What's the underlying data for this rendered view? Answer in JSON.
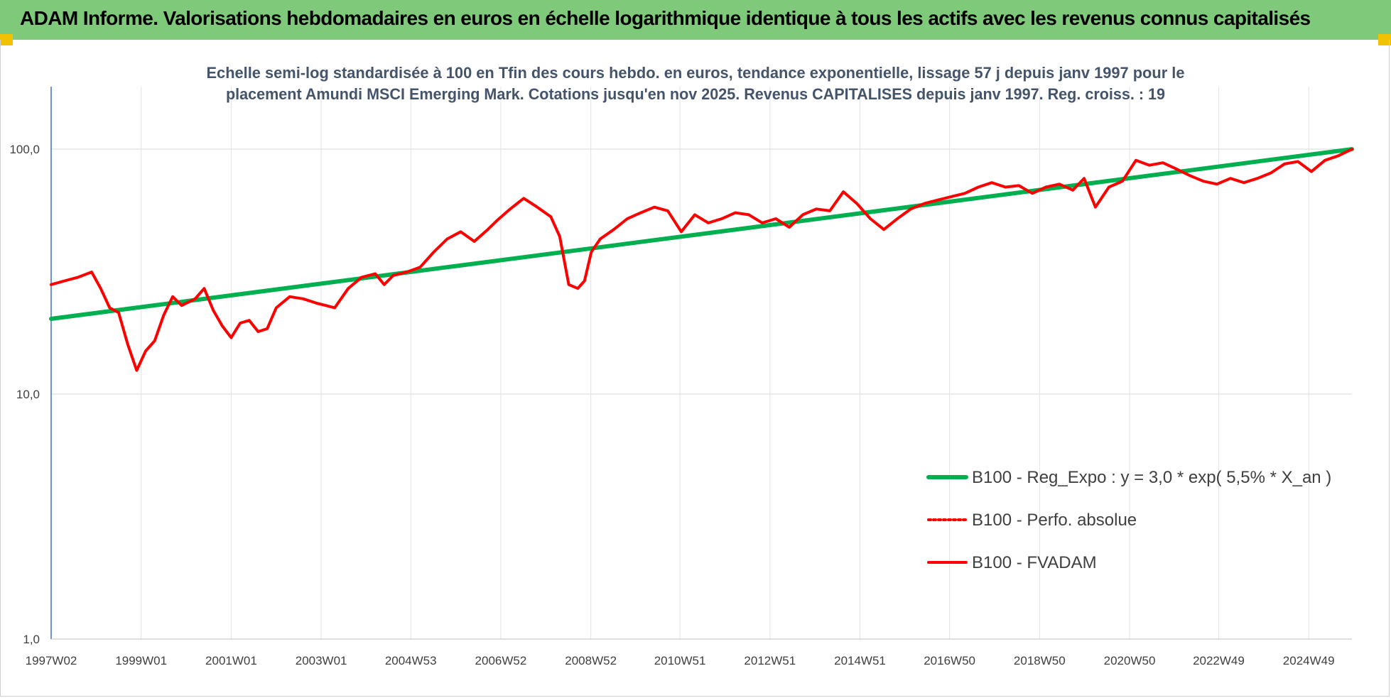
{
  "banner": {
    "title": "ADAM Informe. Valorisations hebdomadaires en euros en échelle logarithmique identique à tous les actifs avec les revenus connus capitalisés",
    "background": "#7fc97a",
    "corner_color": "#f2c200"
  },
  "chart_data": {
    "type": "line",
    "title_lines": [
      "Echelle semi-log standardisée à 100 en Tfin des cours hebdo. en euros, tendance exponentielle, lissage 57 j depuis janv 1997 pour le",
      "placement Amundi MSCI Emerging Mark. Cotations jusqu'en nov 2025. Revenus CAPITALISES depuis janv 1997. Reg. croiss. : 19"
    ],
    "y_scale": "log",
    "ylim": [
      1,
      180
    ],
    "y_ticks": [
      {
        "value": 1,
        "label": "1,0"
      },
      {
        "value": 10,
        "label": "10,0"
      },
      {
        "value": 100,
        "label": "100,0"
      }
    ],
    "xlim": [
      1997.0,
      2025.9
    ],
    "x_ticks": [
      {
        "value": 1997.0,
        "label": "1997W02"
      },
      {
        "value": 1999.0,
        "label": "1999W01"
      },
      {
        "value": 2001.0,
        "label": "2001W01"
      },
      {
        "value": 2003.0,
        "label": "2003W01"
      },
      {
        "value": 2004.99,
        "label": "2004W53"
      },
      {
        "value": 2006.99,
        "label": "2006W52"
      },
      {
        "value": 2008.99,
        "label": "2008W52"
      },
      {
        "value": 2010.97,
        "label": "2010W51"
      },
      {
        "value": 2012.97,
        "label": "2012W51"
      },
      {
        "value": 2014.97,
        "label": "2014W51"
      },
      {
        "value": 2016.96,
        "label": "2016W50"
      },
      {
        "value": 2018.96,
        "label": "2018W50"
      },
      {
        "value": 2020.96,
        "label": "2020W50"
      },
      {
        "value": 2022.94,
        "label": "2022W49"
      },
      {
        "value": 2024.94,
        "label": "2024W49"
      }
    ],
    "grid": {
      "vertical": true,
      "horizontal": true
    },
    "legend_position": "bottom-right",
    "series": [
      {
        "name": "B100 - Reg_Expo : y = 3,0 * exp( 5,5% *  X_an )",
        "color": "#00b050",
        "style": "solid",
        "x": [
          1997.0,
          2025.9
        ],
        "y": [
          20.3,
          100.0
        ]
      },
      {
        "name": "B100 - Perfo. absolue",
        "color": "#ff0000",
        "style": "dotted",
        "x": [],
        "y": []
      },
      {
        "name": "B100 - FVADAM",
        "color": "#ff0000",
        "style": "solid",
        "x": [
          1997.0,
          1997.3,
          1997.6,
          1997.9,
          1998.1,
          1998.3,
          1998.5,
          1998.7,
          1998.9,
          1999.1,
          1999.3,
          1999.5,
          1999.7,
          1999.9,
          2000.2,
          2000.4,
          2000.6,
          2000.8,
          2001.0,
          2001.2,
          2001.4,
          2001.6,
          2001.8,
          2002.0,
          2002.3,
          2002.6,
          2002.9,
          2003.1,
          2003.3,
          2003.6,
          2003.9,
          2004.2,
          2004.4,
          2004.6,
          2004.9,
          2005.2,
          2005.5,
          2005.8,
          2006.1,
          2006.4,
          2006.7,
          2006.9,
          2007.2,
          2007.5,
          2007.8,
          2008.1,
          2008.3,
          2008.5,
          2008.7,
          2008.85,
          2009.0,
          2009.2,
          2009.5,
          2009.8,
          2010.1,
          2010.4,
          2010.7,
          2011.0,
          2011.3,
          2011.6,
          2011.9,
          2012.2,
          2012.5,
          2012.8,
          2013.1,
          2013.4,
          2013.7,
          2014.0,
          2014.3,
          2014.6,
          2014.9,
          2015.2,
          2015.5,
          2015.8,
          2016.1,
          2016.4,
          2016.7,
          2017.0,
          2017.3,
          2017.6,
          2017.9,
          2018.2,
          2018.5,
          2018.8,
          2019.1,
          2019.4,
          2019.7,
          2019.95,
          2020.2,
          2020.5,
          2020.8,
          2021.1,
          2021.4,
          2021.7,
          2022.0,
          2022.3,
          2022.6,
          2022.9,
          2023.2,
          2023.5,
          2023.8,
          2024.1,
          2024.4,
          2024.7,
          2025.0,
          2025.3,
          2025.6,
          2025.9
        ],
        "y": [
          28,
          29,
          30,
          31.5,
          27,
          22.5,
          21.5,
          16,
          12.5,
          15,
          16.5,
          21,
          25,
          23,
          24.5,
          27,
          22,
          19,
          17,
          19.5,
          20,
          18,
          18.5,
          22.5,
          25,
          24.5,
          23.5,
          23,
          22.5,
          27,
          30,
          31,
          28,
          30.5,
          31.5,
          33,
          38,
          43,
          46,
          42,
          47,
          51,
          57,
          63,
          58,
          53,
          44,
          28,
          27,
          29,
          38,
          43,
          47,
          52,
          55,
          58,
          56,
          46,
          54,
          50,
          52,
          55,
          54,
          50,
          52,
          48,
          54,
          57,
          56,
          67,
          60,
          52,
          47,
          52,
          57,
          60,
          62,
          64,
          66,
          70,
          73,
          70,
          71,
          66,
          70,
          72,
          68,
          76,
          58,
          70,
          74,
          90,
          86,
          88,
          83,
          78,
          74,
          72,
          76,
          73,
          76,
          80,
          87,
          89,
          81,
          90,
          94,
          100
        ]
      }
    ]
  }
}
